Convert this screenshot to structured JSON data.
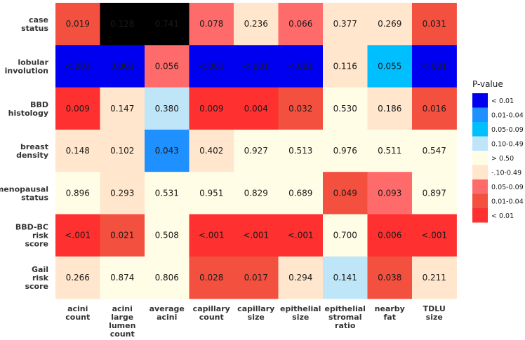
{
  "chart_data": {
    "type": "heatmap",
    "rows": [
      {
        "label": [
          "case",
          "status"
        ]
      },
      {
        "label": [
          "lobular",
          "involution"
        ]
      },
      {
        "label": [
          "BBD",
          "histology"
        ]
      },
      {
        "label": [
          "breast",
          "density"
        ]
      },
      {
        "label": [
          "menopausal",
          "status"
        ]
      },
      {
        "label": [
          "BBD-BC",
          "risk",
          "score"
        ]
      },
      {
        "label": [
          "Gail",
          "risk",
          "score"
        ]
      }
    ],
    "columns": [
      {
        "label": [
          "acini",
          "count"
        ]
      },
      {
        "label": [
          "acini",
          "large",
          "lumen",
          "count"
        ]
      },
      {
        "label": [
          "average",
          "acini"
        ]
      },
      {
        "label": [
          "capillary",
          "count"
        ]
      },
      {
        "label": [
          "capillary",
          "size"
        ]
      },
      {
        "label": [
          "epithelial",
          "size"
        ]
      },
      {
        "label": [
          "epithelial",
          "stromal",
          "ratio"
        ]
      },
      {
        "label": [
          "nearby",
          "fat"
        ]
      },
      {
        "label": [
          "TDLU",
          "size"
        ]
      }
    ],
    "values": [
      [
        "0.019",
        "0.128",
        "0.741",
        "0.078",
        "0.236",
        "0.066",
        "0.377",
        "0.269",
        "0.031"
      ],
      [
        "<.001",
        "0.003",
        "0.056",
        "<.001",
        "<.001",
        "<.001",
        "0.116",
        "0.055",
        "<.001"
      ],
      [
        "0.009",
        "0.147",
        "0.380",
        "0.009",
        "0.004",
        "0.032",
        "0.530",
        "0.186",
        "0.016"
      ],
      [
        "0.148",
        "0.102",
        "0.043",
        "0.402",
        "0.927",
        "0.513",
        "0.976",
        "0.511",
        "0.547"
      ],
      [
        "0.896",
        "0.293",
        "0.531",
        "0.951",
        "0.829",
        "0.689",
        "0.049",
        "0.093",
        "0.897"
      ],
      [
        "<.001",
        "0.021",
        "0.508",
        "<.001",
        "<.001",
        "<.001",
        "0.700",
        "0.006",
        "<.001"
      ],
      [
        "0.266",
        "0.874",
        "0.806",
        "0.028",
        "0.017",
        "0.294",
        "0.141",
        "0.038",
        "0.211"
      ]
    ],
    "categories_grid": [
      [
        "r2",
        "r4",
        "r6",
        "r3",
        "r5",
        "r3",
        "r5",
        "r5",
        "r2"
      ],
      [
        "b1",
        "b1",
        "r3",
        "b1",
        "b1",
        "b1",
        "r5",
        "b3",
        "b1"
      ],
      [
        "r1",
        "r5",
        "b4",
        "r1",
        "r1",
        "r2",
        "n",
        "r5",
        "r2"
      ],
      [
        "r5",
        "r5",
        "b2",
        "r5",
        "n",
        "n",
        "n",
        "n",
        "n"
      ],
      [
        "n",
        "r5",
        "n",
        "n",
        "n",
        "n",
        "r2",
        "r3",
        "n"
      ],
      [
        "r1",
        "r2",
        "n",
        "r1",
        "r1",
        "r1",
        "n",
        "r1",
        "r1"
      ],
      [
        "r5",
        "n",
        "n",
        "r2",
        "r2",
        "r5",
        "b4",
        "r2",
        "r5"
      ]
    ],
    "legend": {
      "title": "P-value",
      "position": "right",
      "items": [
        {
          "key": "b1",
          "label": "< 0.01",
          "color": "#0000f0"
        },
        {
          "key": "b2",
          "label": "0.01-0.04",
          "color": "#1e90ff"
        },
        {
          "key": "b3",
          "label": "0.05-0.09",
          "color": "#00bfff"
        },
        {
          "key": "b4",
          "label": "0.10-0.49",
          "color": "#bfe6f8"
        },
        {
          "key": "n",
          "label": "> 0.50",
          "color": "#fffde6"
        },
        {
          "key": "r5",
          "label": "-.10-0.49",
          "color": "#ffe6cc"
        },
        {
          "key": "r3",
          "label": "0.05-0.09",
          "color": "#ff6b6b"
        },
        {
          "key": "r2",
          "label": "0.01-0.04",
          "color": "#f4503f"
        },
        {
          "key": "r1",
          "label": "< 0.01",
          "color": "#ff3030"
        }
      ]
    },
    "panel_background": "#ebebeb"
  }
}
